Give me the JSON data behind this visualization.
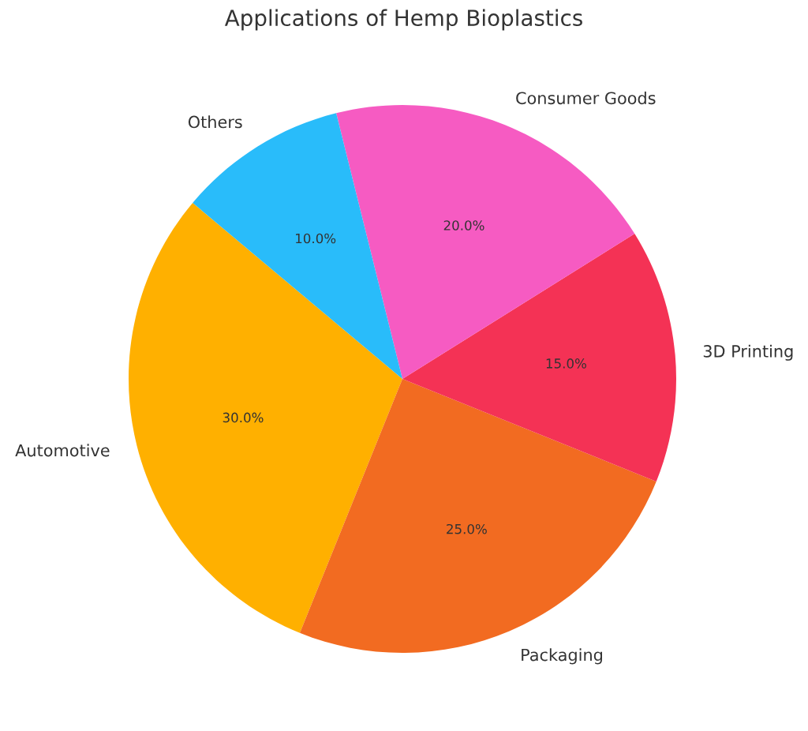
{
  "chart_data": {
    "type": "pie",
    "title": "Applications of Hemp Bioplastics",
    "categories": [
      "Automotive",
      "Packaging",
      "3D Printing",
      "Consumer Goods",
      "Others"
    ],
    "values": [
      30,
      25,
      15,
      20,
      10
    ],
    "value_labels": [
      "30.0%",
      "25.0%",
      "15.0%",
      "20.0%",
      "10.0%"
    ],
    "colors": [
      "#ffb000",
      "#f26b21",
      "#f43255",
      "#f65bc2",
      "#29bcfa"
    ],
    "legend": false
  }
}
